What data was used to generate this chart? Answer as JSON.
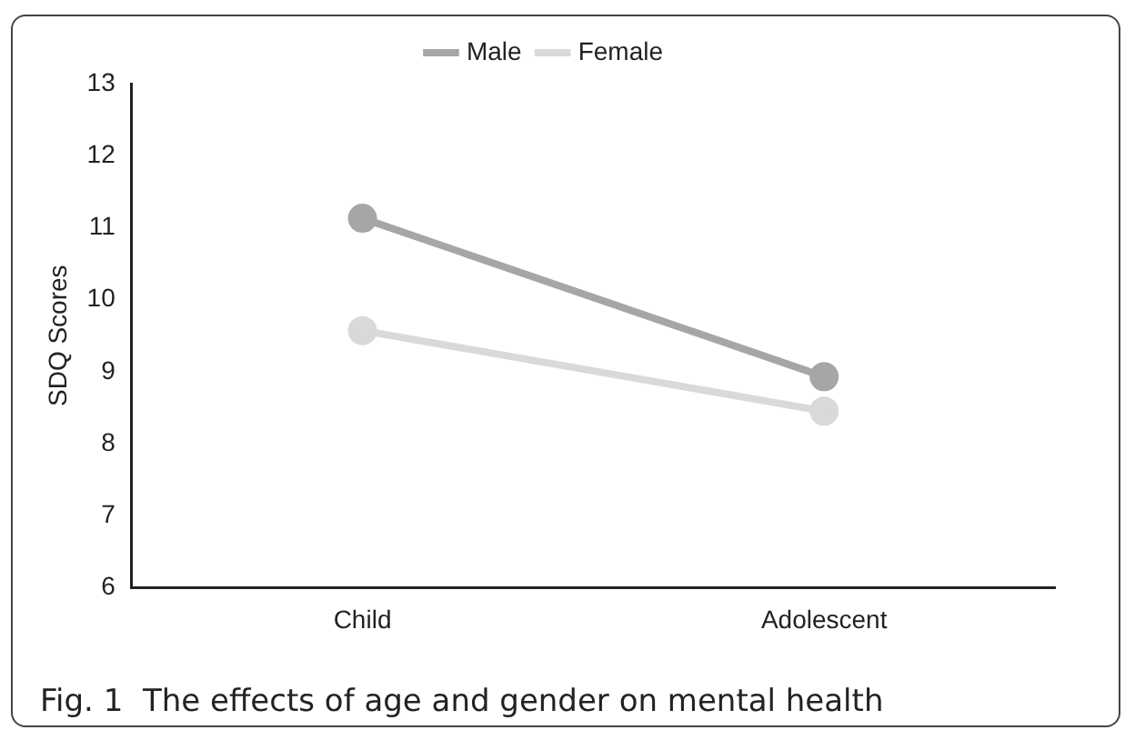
{
  "chart_data": {
    "type": "line",
    "categories": [
      "Child",
      "Adolescent"
    ],
    "series": [
      {
        "name": "Male",
        "color": "#a6a6a6",
        "values": [
          11.13,
          8.93
        ]
      },
      {
        "name": "Female",
        "color": "#d9d9d9",
        "values": [
          9.57,
          8.45
        ]
      }
    ],
    "ylabel": "SDQ Scores",
    "ylim": [
      6,
      13
    ],
    "yticks": [
      6,
      7,
      8,
      9,
      10,
      11,
      12,
      13
    ],
    "grid": false,
    "legend": "top",
    "marker": "circle",
    "line_style": "solid",
    "annotations": [
      "Fig. 1  The effects of age and gender on mental health"
    ]
  }
}
